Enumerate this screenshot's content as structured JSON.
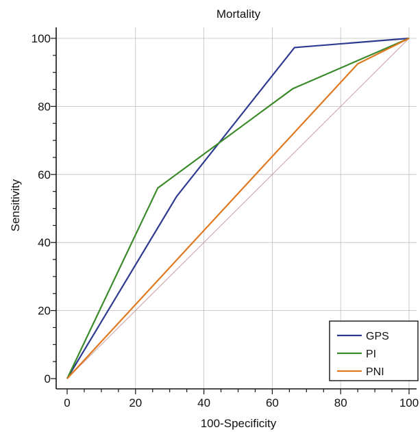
{
  "chart_data": {
    "type": "line",
    "title": "Mortality",
    "xlabel": "100-Specificity",
    "ylabel": "Sensitivity",
    "xlim": [
      0,
      100
    ],
    "ylim": [
      0,
      100
    ],
    "xticks": [
      "0",
      "20",
      "40",
      "60",
      "80",
      "100"
    ],
    "yticks": [
      "0",
      "20",
      "40",
      "60",
      "80",
      "100"
    ],
    "grid": true,
    "legend_position": "bottom-right",
    "reference_line": {
      "x": [
        0,
        100
      ],
      "y": [
        0,
        100
      ],
      "color": "#c8a0a0"
    },
    "series": [
      {
        "name": "GPS",
        "color": "#2e3a8f",
        "x": [
          0,
          32,
          66.5,
          100
        ],
        "y": [
          0,
          53.5,
          97.3,
          100
        ]
      },
      {
        "name": "PI",
        "color": "#3a8a2a",
        "x": [
          0,
          26.5,
          66,
          100
        ],
        "y": [
          0,
          56,
          85.2,
          100
        ]
      },
      {
        "name": "PNI",
        "color": "#e07820",
        "x": [
          0,
          85,
          100
        ],
        "y": [
          0,
          92.5,
          100
        ]
      }
    ]
  }
}
